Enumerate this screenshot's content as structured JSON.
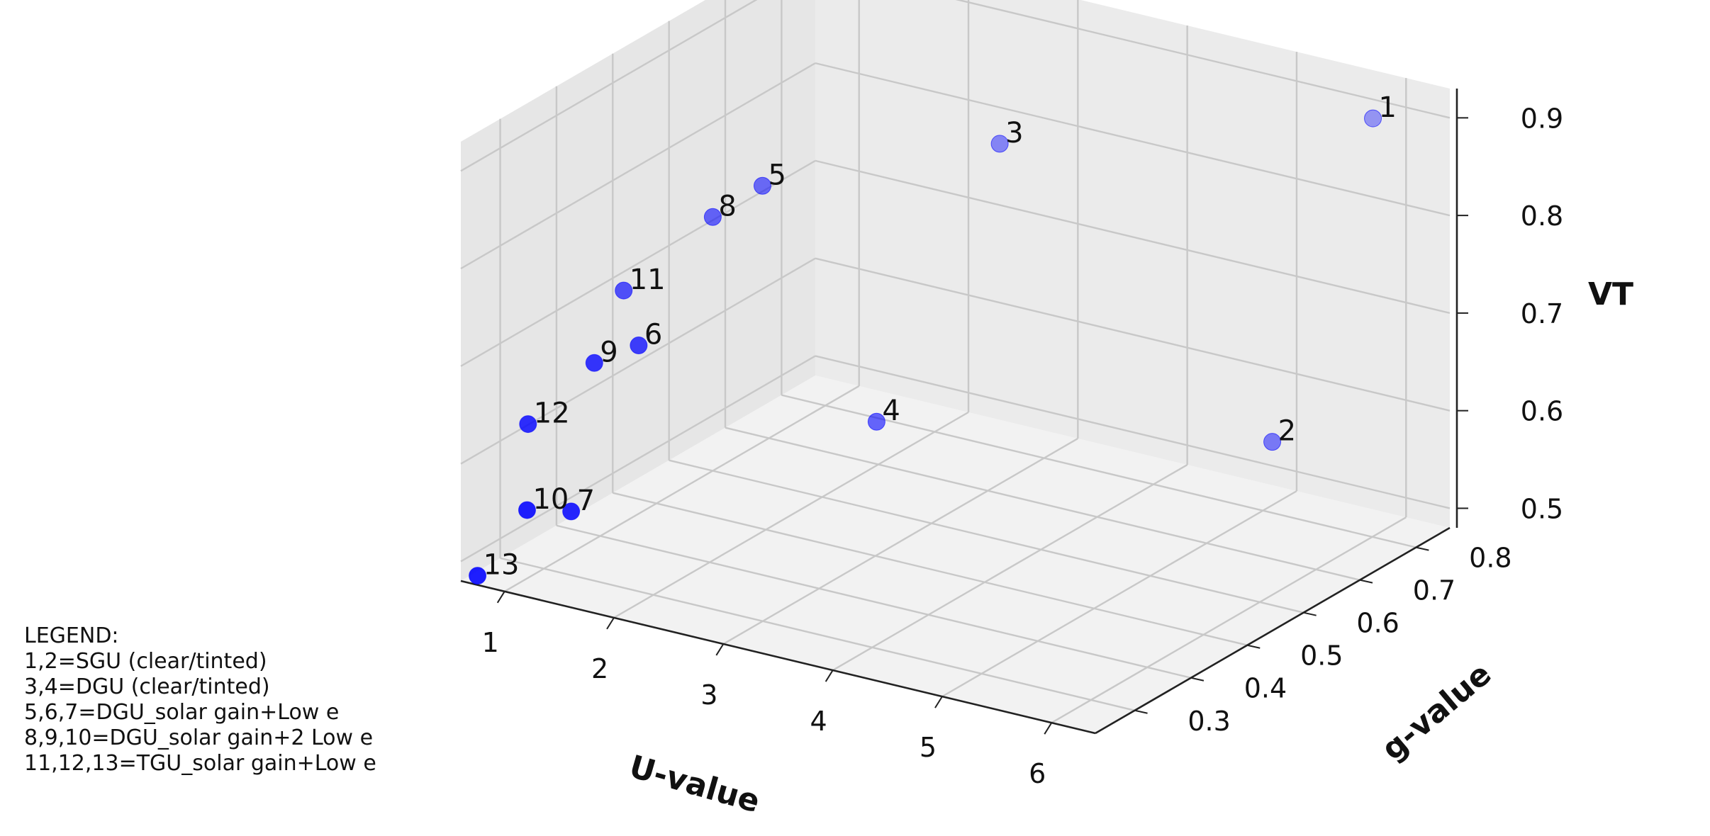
{
  "chart_data": {
    "type": "scatter",
    "projection": "3d",
    "title": "",
    "xlabel": "U-value",
    "ylabel": "g-value",
    "zlabel": "VT",
    "x_ticks": [
      "1",
      "2",
      "3",
      "4",
      "5",
      "6"
    ],
    "y_ticks": [
      "0.3",
      "0.4",
      "0.5",
      "0.6",
      "0.7",
      "0.8"
    ],
    "z_ticks": [
      "0.5",
      "0.6",
      "0.7",
      "0.8",
      "0.9"
    ],
    "xlim": [
      0.6,
      6.4
    ],
    "ylim": [
      0.23,
      0.86
    ],
    "zlim": [
      0.48,
      0.93
    ],
    "grid": true,
    "marker_color": "#0000ff",
    "points": [
      {
        "label": "1",
        "x": 5.8,
        "y": 0.84,
        "z": 0.89
      },
      {
        "label": "2",
        "x": 5.6,
        "y": 0.7,
        "z": 0.6
      },
      {
        "label": "3",
        "x": 2.8,
        "y": 0.76,
        "z": 0.81
      },
      {
        "label": "4",
        "x": 2.6,
        "y": 0.58,
        "z": 0.58
      },
      {
        "label": "5",
        "x": 1.3,
        "y": 0.63,
        "z": 0.77
      },
      {
        "label": "6",
        "x": 1.3,
        "y": 0.41,
        "z": 0.68
      },
      {
        "label": "7",
        "x": 1.3,
        "y": 0.29,
        "z": 0.55
      },
      {
        "label": "8",
        "x": 1.0,
        "y": 0.6,
        "z": 0.74
      },
      {
        "label": "9",
        "x": 1.1,
        "y": 0.37,
        "z": 0.67
      },
      {
        "label": "10",
        "x": 1.0,
        "y": 0.27,
        "z": 0.55
      },
      {
        "label": "11",
        "x": 0.7,
        "y": 0.5,
        "z": 0.69
      },
      {
        "label": "12",
        "x": 0.7,
        "y": 0.33,
        "z": 0.61
      },
      {
        "label": "13",
        "x": 0.65,
        "y": 0.25,
        "z": 0.48
      }
    ],
    "legend_title": "LEGEND:",
    "legend_lines": [
      "1,2=SGU (clear/tinted)",
      "3,4=DGU (clear/tinted)",
      "5,6,7=DGU_solar gain+Low e",
      "8,9,10=DGU_solar gain+2 Low e",
      "11,12,13=TGU_solar gain+Low e"
    ]
  }
}
